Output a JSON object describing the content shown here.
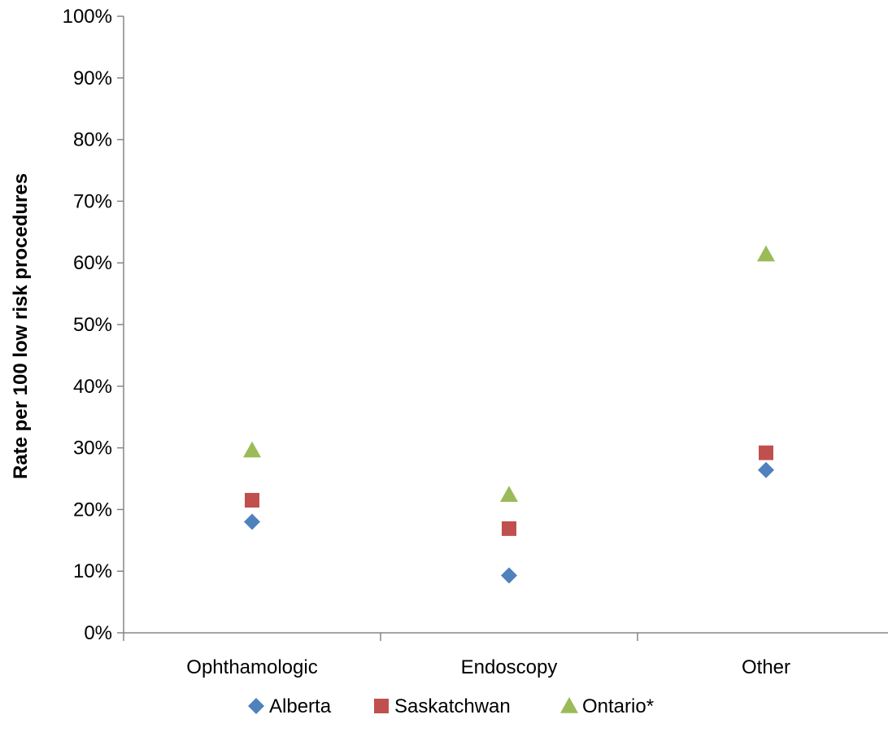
{
  "chart_data": {
    "type": "scatter",
    "title": "",
    "xlabel": "",
    "ylabel": "Rate per 100 low risk procedures",
    "categories": [
      "Ophthamologic",
      "Endoscopy",
      "Other"
    ],
    "ylim": [
      0,
      100
    ],
    "yticks": [
      "0%",
      "10%",
      "20%",
      "30%",
      "40%",
      "50%",
      "60%",
      "70%",
      "80%",
      "90%",
      "100%"
    ],
    "grid": false,
    "legend_position": "bottom",
    "series": [
      {
        "name": "Alberta",
        "marker": "diamond",
        "color": "#4F81BD",
        "values": [
          18.0,
          9.3,
          26.4
        ]
      },
      {
        "name": "Saskatchwan",
        "marker": "square",
        "color": "#C0504D",
        "values": [
          21.5,
          16.9,
          29.2
        ]
      },
      {
        "name": "Ontario*",
        "marker": "triangle",
        "color": "#9BBB59",
        "values": [
          29.6,
          22.4,
          61.4
        ]
      }
    ]
  }
}
